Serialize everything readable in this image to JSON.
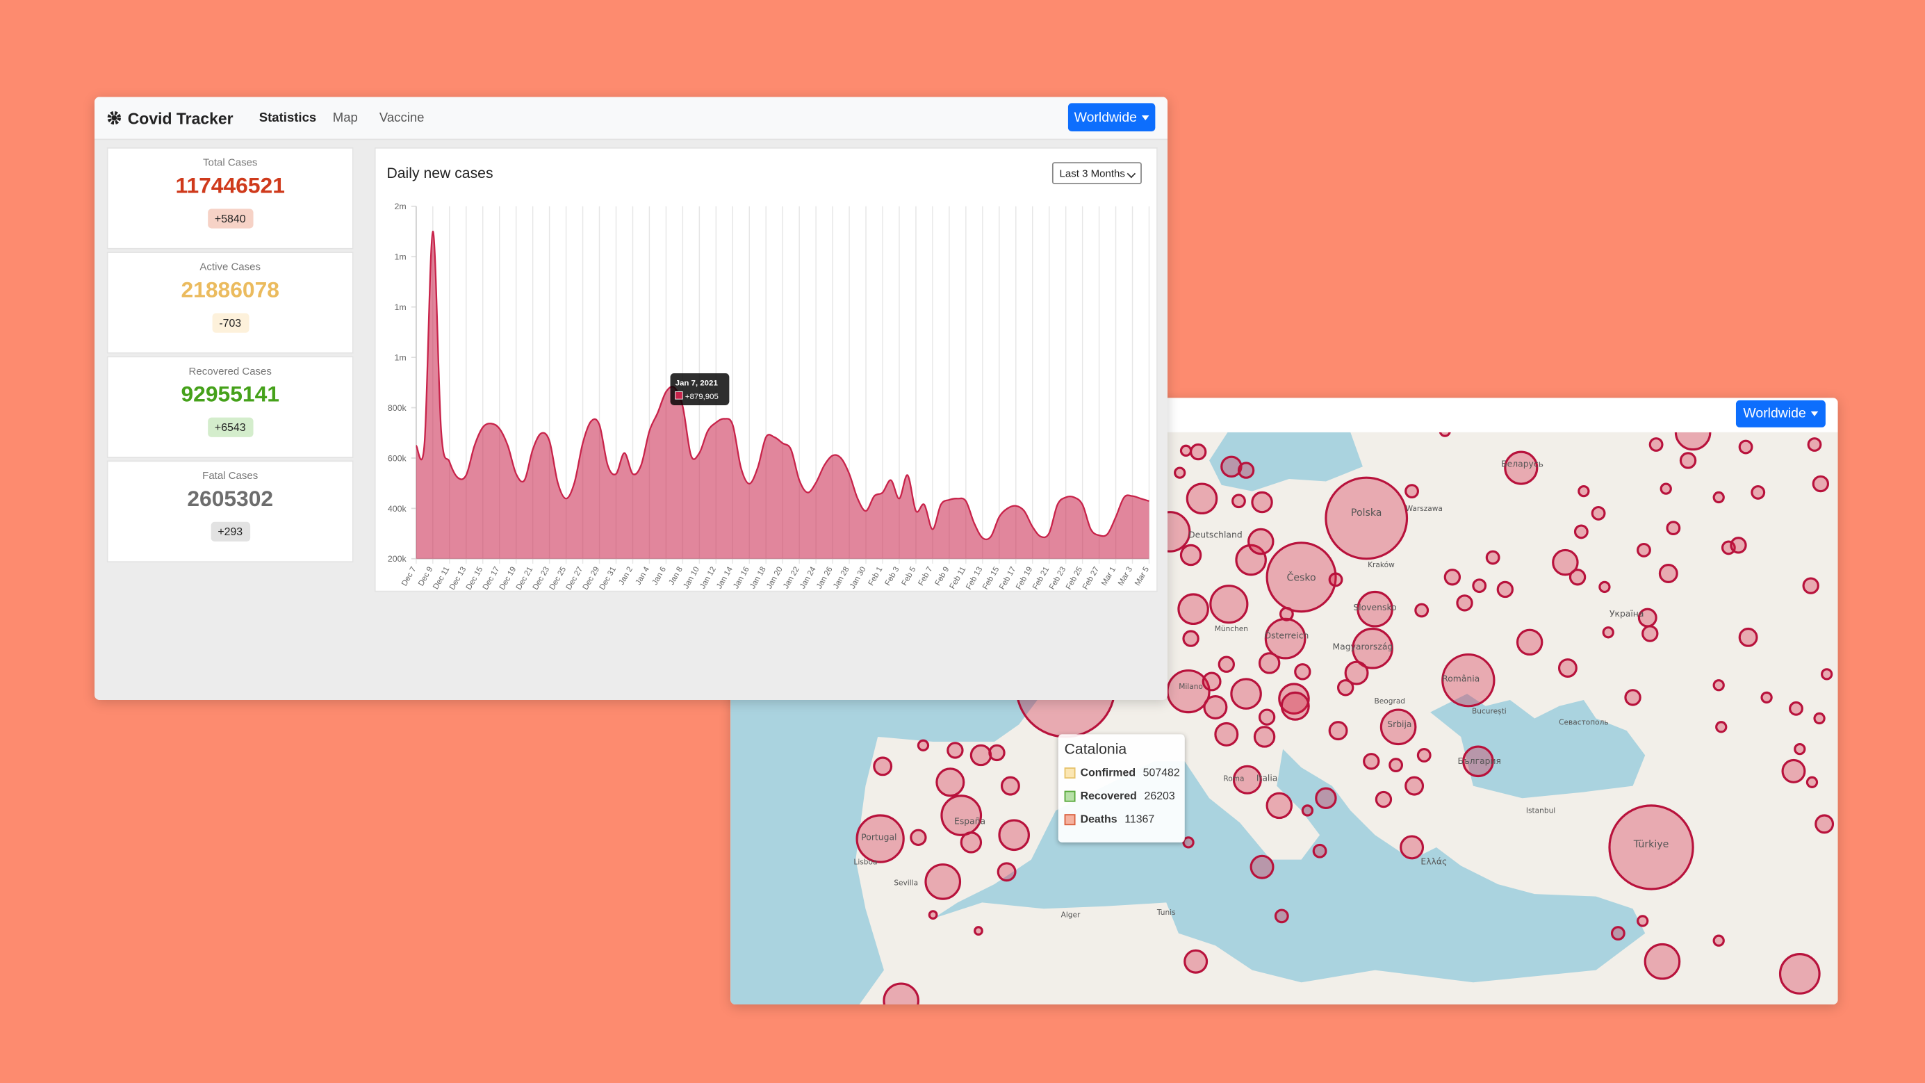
{
  "chart_data": {
    "type": "area",
    "title": "Daily new cases",
    "categories": [
      "Dec 7",
      null,
      "Dec 9",
      null,
      "Dec 11",
      null,
      "Dec 13",
      null,
      "Dec 15",
      null,
      "Dec 17",
      null,
      "Dec 19",
      null,
      "Dec 21",
      null,
      "Dec 23",
      null,
      "Dec 25",
      null,
      "Dec 27",
      null,
      "Dec 29",
      null,
      "Dec 31",
      null,
      "Jan 2",
      null,
      "Jan 4",
      null,
      "Jan 6",
      null,
      "Jan 8",
      null,
      "Jan 10",
      null,
      "Jan 12",
      null,
      "Jan 14",
      null,
      "Jan 16",
      null,
      "Jan 18",
      null,
      "Jan 20",
      null,
      "Jan 22",
      null,
      "Jan 24",
      null,
      "Jan 26",
      null,
      "Jan 28",
      null,
      "Jan 30",
      null,
      "Feb 1",
      null,
      "Feb 3",
      null,
      "Feb 5",
      null,
      "Feb 7",
      null,
      "Feb 9",
      null,
      "Feb 11",
      null,
      "Feb 13",
      null,
      "Feb 15",
      null,
      "Feb 17",
      null,
      "Feb 19",
      null,
      "Feb 21",
      null,
      "Feb 23",
      null,
      "Feb 25",
      null,
      "Feb 27",
      null,
      "Mar 1",
      null,
      "Mar 3",
      null,
      "Mar 5"
    ],
    "series": [
      {
        "name": "Daily new cases",
        "color": "#c8234a",
        "values": [
          649000,
          659000,
          1500000,
          707000,
          585000,
          522000,
          532000,
          649000,
          722000,
          737000,
          717000,
          649000,
          537000,
          512000,
          634000,
          698000,
          668000,
          502000,
          439000,
          502000,
          659000,
          746000,
          732000,
          571000,
          537000,
          620000,
          537000,
          571000,
          707000,
          780000,
          863000,
          879905,
          805000,
          610000,
          620000,
          707000,
          741000,
          756000,
          732000,
          561000,
          498000,
          561000,
          683000,
          683000,
          659000,
          634000,
          512000,
          463000,
          502000,
          571000,
          610000,
          600000,
          537000,
          439000,
          390000,
          449000,
          463000,
          512000,
          439000,
          532000,
          390000,
          415000,
          317000,
          415000,
          434000,
          439000,
          429000,
          341000,
          283000,
          288000,
          366000,
          400000,
          410000,
          390000,
          327000,
          288000,
          302000,
          415000,
          444000,
          444000,
          415000,
          317000,
          293000,
          298000,
          366000,
          444000,
          449000,
          439000,
          429000
        ]
      }
    ],
    "ylim": [
      200000,
      1600000
    ],
    "yticks": [
      {
        "value": 200000,
        "label": "200k"
      },
      {
        "value": 400000,
        "label": "400k"
      },
      {
        "value": 600000,
        "label": "600k"
      },
      {
        "value": 800000,
        "label": "800k"
      },
      {
        "value": 1000000,
        "label": "1m"
      },
      {
        "value": 1200000,
        "label": "1m"
      },
      {
        "value": 1400000,
        "label": "1m"
      },
      {
        "value": 1600000,
        "label": "2m"
      }
    ],
    "grid": true,
    "tooltip": {
      "title": "Jan 7, 2021",
      "label": "+879,905"
    },
    "range_select": "Last 3 Months"
  },
  "navbar": {
    "brand": "Covid Tracker",
    "links": [
      "Statistics",
      "Map",
      "Vaccine"
    ],
    "region_button": "Worldwide"
  },
  "stats": [
    {
      "title": "Total Cases",
      "value": 117446521,
      "change": "+5840"
    },
    {
      "title": "Active Cases",
      "value": 21886078,
      "change": "-703"
    },
    {
      "title": "Recovered Cases",
      "value": 92955141,
      "change": "+6543"
    },
    {
      "title": "Fatal Cases",
      "value": 2605302,
      "change": "+293"
    }
  ],
  "map": {
    "region_button": "Worldwide",
    "labels": [
      "Polska",
      "Česko",
      "Deutschland",
      "Österreich",
      "Slovensko",
      "Magyarország",
      "România",
      "Srbija",
      "България",
      "Беларусь",
      "Україна",
      "Türkiye",
      "España",
      "Portugal",
      "Italia",
      "Ελλάς",
      "Warszawa",
      "München",
      "Milano",
      "Roma",
      "Beograd",
      "București",
      "Istanbul",
      "Lisboa",
      "Sevilla",
      "Kraków",
      "Севастополь",
      "Alger",
      "Tunis"
    ],
    "popup": {
      "title": "Catalonia",
      "rows": [
        {
          "name": "Confirmed",
          "value": 507482
        },
        {
          "name": "Recovered",
          "value": 26203
        },
        {
          "name": "Deaths",
          "value": 11367
        }
      ]
    }
  }
}
